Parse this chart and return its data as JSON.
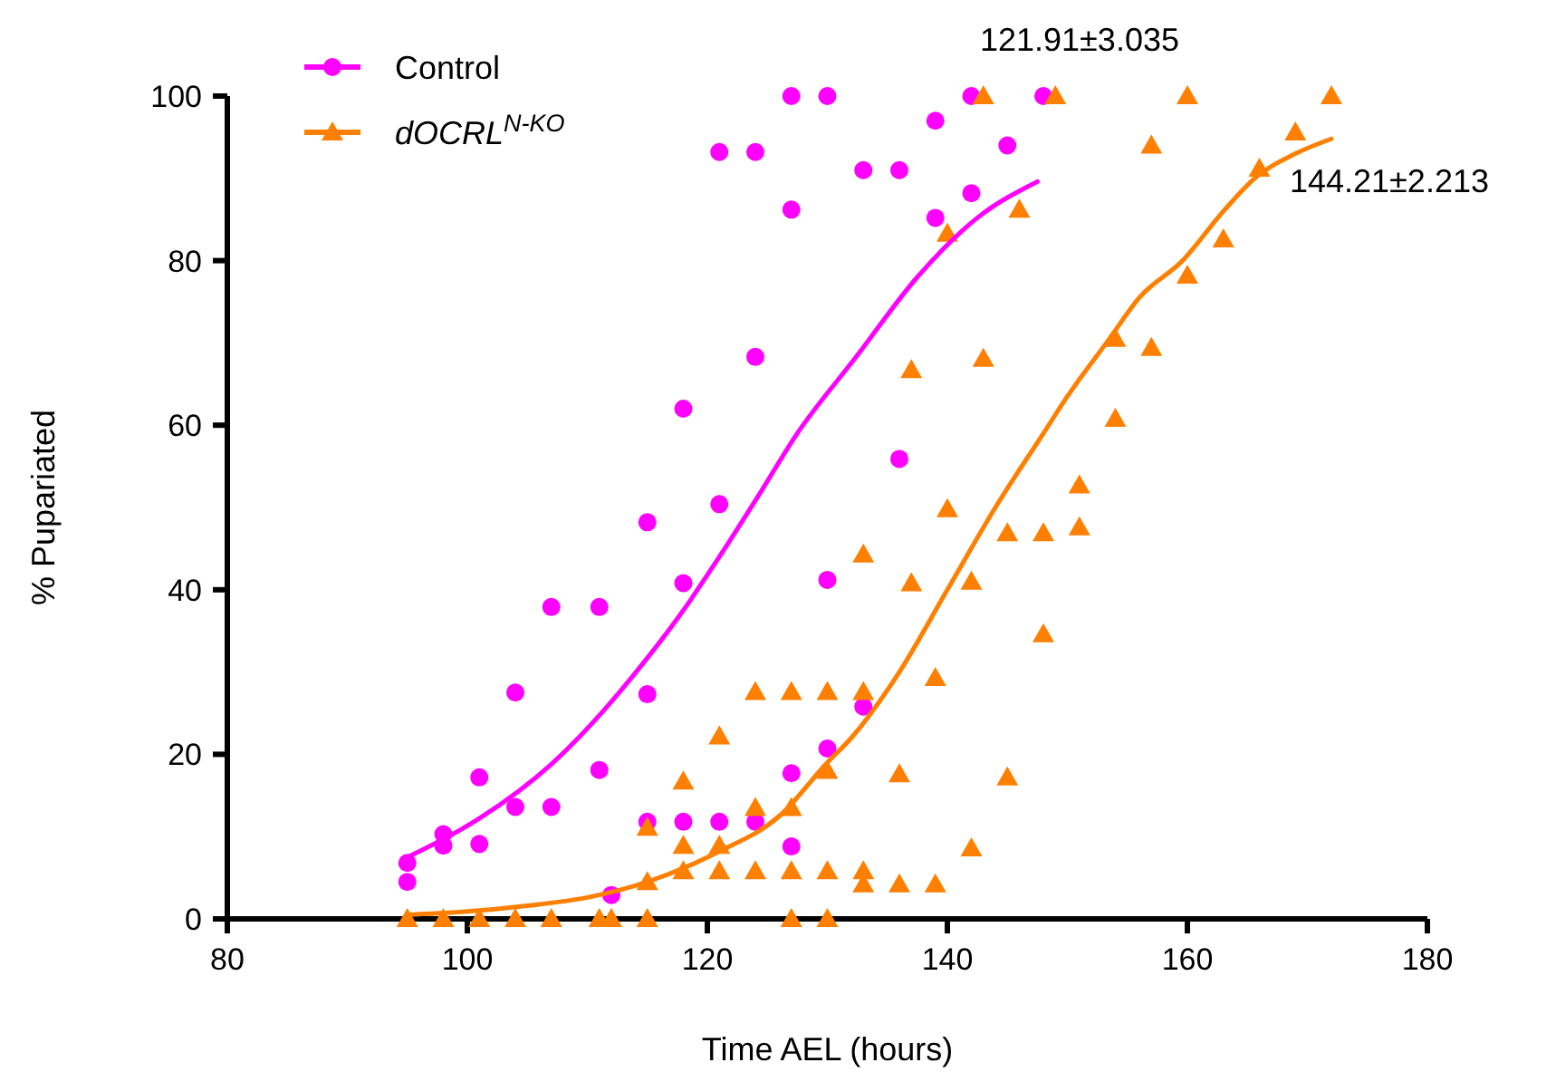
{
  "chart_data": {
    "type": "scatter",
    "xlabel": "Time AEL (hours)",
    "ylabel": "% Pupariated",
    "xlim": [
      80,
      180
    ],
    "ylim": [
      0,
      100
    ],
    "xticks": [
      80,
      100,
      120,
      140,
      160,
      180
    ],
    "yticks": [
      0,
      20,
      40,
      60,
      80,
      100
    ],
    "grid": false,
    "legend": "top left",
    "annotations": [
      "121.91±3.035",
      "144.21±2.213"
    ],
    "series": [
      {
        "name": "Control",
        "color": "#ff00ff",
        "marker": "circle",
        "x": [
          95,
          95,
          98,
          98,
          101,
          101,
          104,
          104,
          107,
          107,
          111,
          111,
          112,
          115,
          115,
          115,
          118,
          118,
          118,
          121,
          121,
          121,
          124,
          124,
          124,
          127,
          127,
          127,
          127,
          130,
          130,
          130,
          133,
          133,
          136,
          136,
          139,
          139,
          142,
          142,
          145,
          148
        ],
        "values": [
          6.8,
          4.5,
          10.3,
          8.9,
          17.2,
          9.1,
          27.5,
          13.6,
          37.9,
          13.6,
          37.9,
          18.1,
          2.9,
          48.2,
          27.3,
          11.8,
          62,
          40.8,
          11.8,
          93.2,
          50.4,
          11.8,
          93.2,
          68.3,
          11.8,
          100,
          86.2,
          17.7,
          8.8,
          100,
          41.2,
          20.7,
          91,
          25.8,
          91,
          55.9,
          97,
          85.2,
          100,
          88.2,
          94,
          100
        ]
      },
      {
        "name": "dOCRL$^{N-KO}$",
        "color": "#ff7f00",
        "marker": "triangle",
        "x": [
          95,
          98,
          101,
          104,
          107,
          111,
          112,
          115,
          115,
          115,
          118,
          118,
          118,
          121,
          121,
          121,
          124,
          124,
          124,
          127,
          127,
          127,
          127,
          130,
          130,
          130,
          130,
          133,
          133,
          133,
          133,
          136,
          136,
          137,
          137,
          139,
          139,
          140,
          140,
          142,
          142,
          143,
          143,
          145,
          145,
          146,
          148,
          148,
          149,
          151,
          151,
          154,
          154,
          157,
          157,
          160,
          160,
          163,
          166,
          169,
          172
        ],
        "values": [
          0,
          0,
          0,
          0,
          0,
          0,
          0,
          0,
          4.5,
          11.1,
          16.7,
          8.9,
          5.8,
          22.2,
          8.9,
          5.8,
          27.6,
          13.5,
          5.8,
          27.6,
          13.5,
          5.8,
          0,
          27.6,
          18,
          5.8,
          0,
          44.3,
          27.6,
          5.8,
          4.2,
          17.6,
          4.2,
          66.7,
          40.8,
          29.3,
          4.2,
          83.3,
          49.8,
          41,
          8.6,
          100,
          68.1,
          46.9,
          17.2,
          86.2,
          46.9,
          34.6,
          100,
          47.6,
          52.7,
          70.5,
          60.8,
          94,
          69.4,
          100,
          78.2,
          82.6,
          91.2,
          95.6,
          100
        ]
      },
      {
        "type": "line",
        "color": "#ff00ff",
        "marker": "none",
        "x": [
          95,
          101,
          107,
          115,
          118,
          121,
          124.5,
          127.4,
          132.4,
          137.5,
          142.5,
          147.5
        ],
        "values": [
          7.5,
          12.2,
          18.8,
          31.7,
          37.5,
          44,
          52,
          58.8,
          68.3,
          78,
          85.2,
          89.6
        ]
      },
      {
        "type": "line",
        "color": "#ff7f00",
        "marker": "none",
        "x": [
          95,
          100,
          105,
          110,
          115,
          121,
          126,
          130,
          132,
          136,
          140,
          144,
          148,
          150,
          153.5,
          156,
          159.6,
          163,
          165.6,
          169,
          172
        ],
        "values": [
          0.5,
          0.9,
          1.6,
          2.6,
          4.5,
          8.2,
          12.5,
          19,
          22,
          30,
          40,
          50,
          59,
          63.5,
          70.5,
          75.5,
          80,
          86,
          90,
          93,
          94.8
        ]
      }
    ]
  }
}
